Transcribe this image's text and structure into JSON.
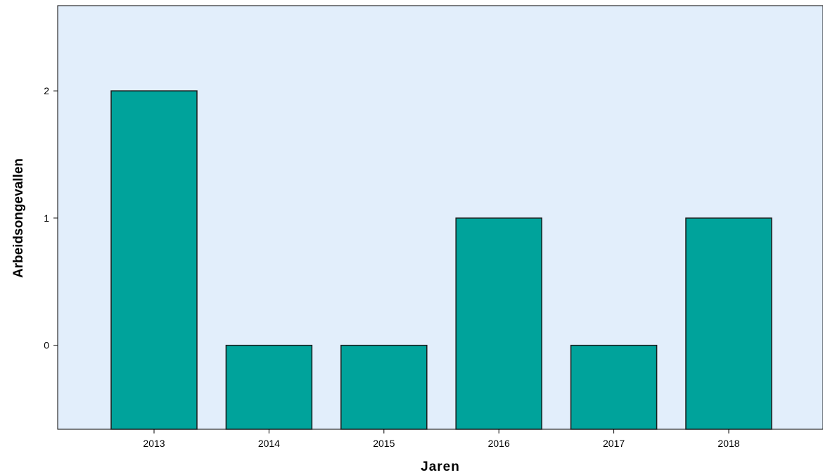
{
  "chart_data": {
    "type": "bar",
    "categories": [
      "2013",
      "2014",
      "2015",
      "2016",
      "2017",
      "2018"
    ],
    "values": [
      2,
      0,
      0,
      1,
      0,
      1
    ],
    "title": "",
    "xlabel": "Jaren",
    "ylabel": "Arbeidsongevallen",
    "ylim": [
      -0.66,
      2.67
    ],
    "yticks": [
      0,
      1,
      2
    ],
    "grid": false,
    "legend": "none",
    "colors": {
      "bar": "#00a39b",
      "bar_edge": "#1a1a1a",
      "plot_background": "#e2eefb",
      "axis": "#000000"
    }
  }
}
